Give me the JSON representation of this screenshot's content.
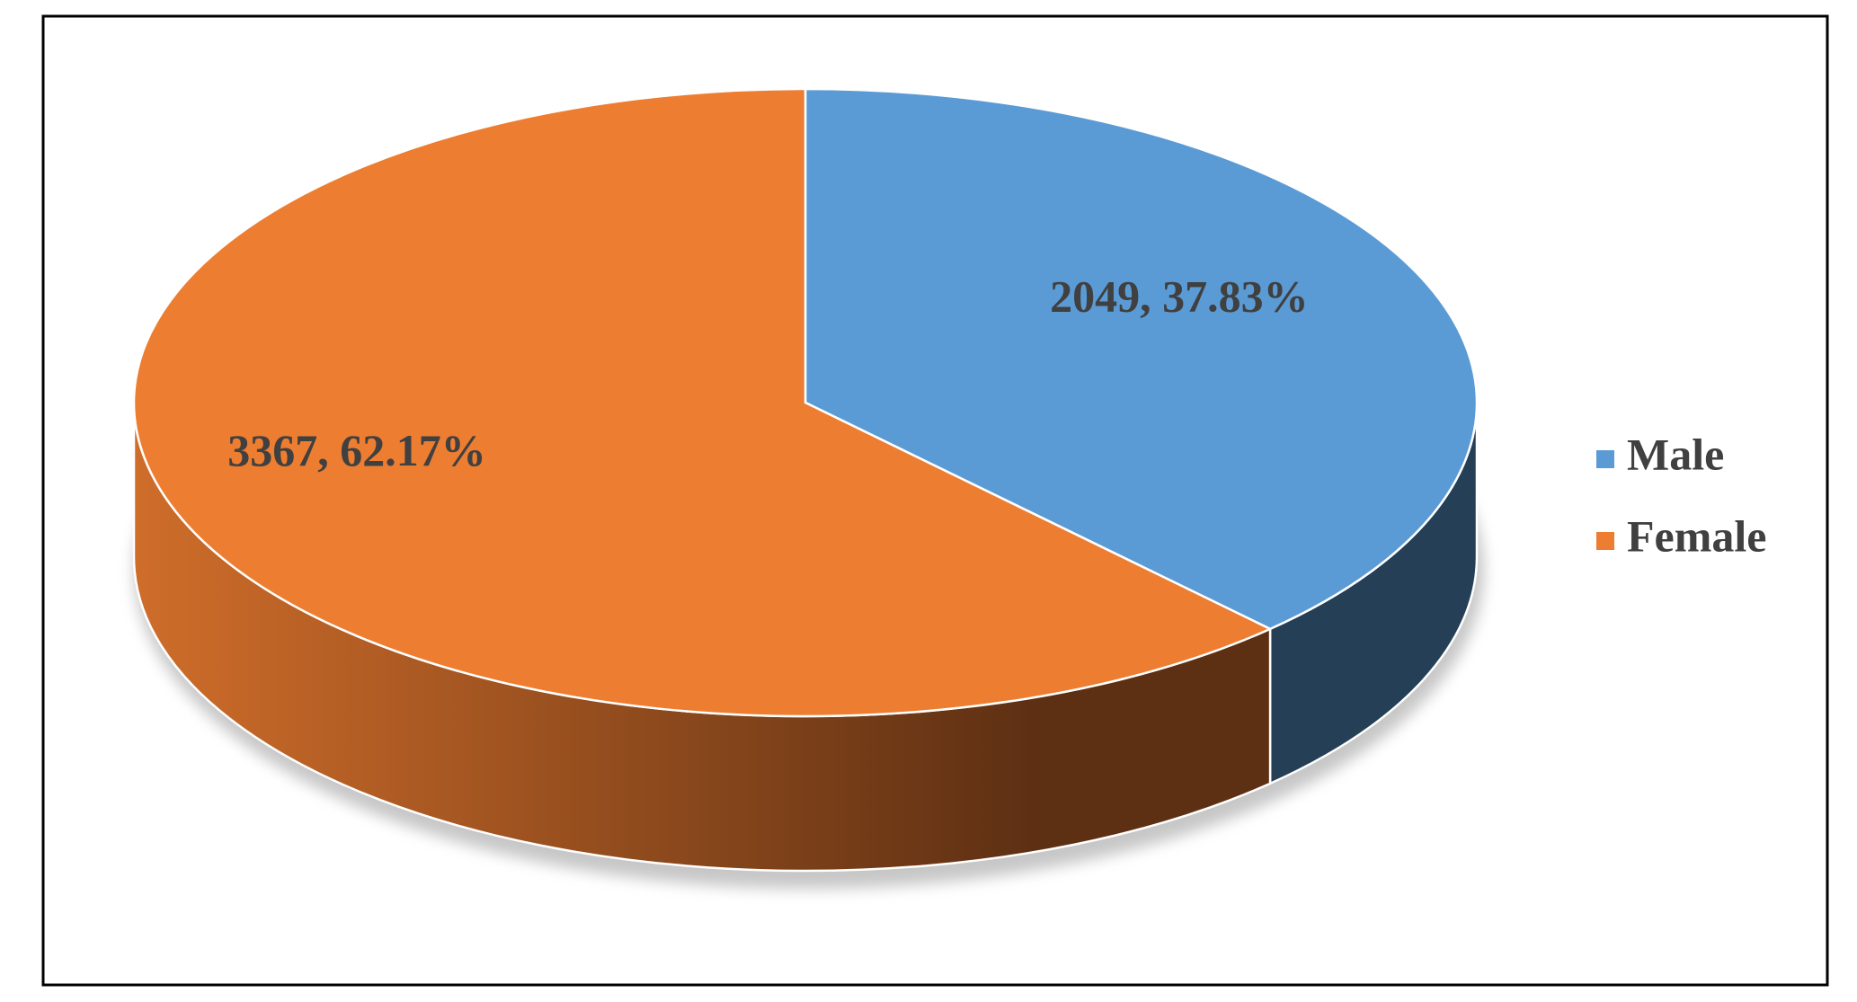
{
  "chart_data": {
    "type": "pie3d",
    "categories": [
      "Male",
      "Female"
    ],
    "values": [
      2049,
      3367
    ],
    "value_labels": [
      "2049, 37.83%",
      "3367, 62.17%"
    ],
    "colors": [
      "#5b9bd5",
      "#ed7d31"
    ],
    "legend": "right"
  }
}
